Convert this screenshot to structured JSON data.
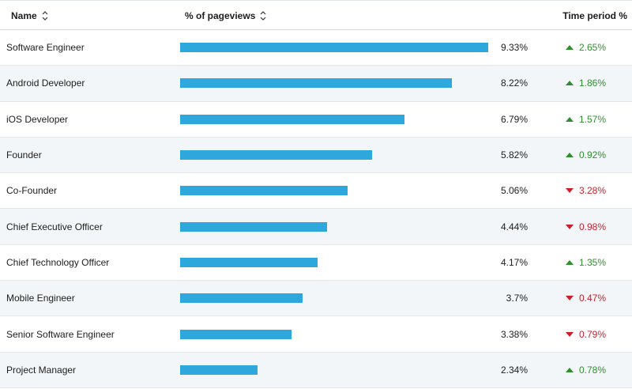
{
  "header": {
    "name_label": "Name",
    "views_label": "% of pageviews",
    "time_label": "Time period %"
  },
  "colors": {
    "bar": "#2ea8dc",
    "up": "#2f8f2f",
    "down": "#cc1f2a",
    "row_alt": "#f3f6f8"
  },
  "max_percent": 9.33,
  "rows": [
    {
      "name": "Software Engineer",
      "percent": 9.33,
      "percent_text": "9.33%",
      "delta_text": "2.65%",
      "direction": "up"
    },
    {
      "name": "Android Developer",
      "percent": 8.22,
      "percent_text": "8.22%",
      "delta_text": "1.86%",
      "direction": "up"
    },
    {
      "name": "iOS Developer",
      "percent": 6.79,
      "percent_text": "6.79%",
      "delta_text": "1.57%",
      "direction": "up"
    },
    {
      "name": "Founder",
      "percent": 5.82,
      "percent_text": "5.82%",
      "delta_text": "0.92%",
      "direction": "up"
    },
    {
      "name": "Co-Founder",
      "percent": 5.06,
      "percent_text": "5.06%",
      "delta_text": "3.28%",
      "direction": "down"
    },
    {
      "name": "Chief Executive Officer",
      "percent": 4.44,
      "percent_text": "4.44%",
      "delta_text": "0.98%",
      "direction": "down"
    },
    {
      "name": "Chief Technology Officer",
      "percent": 4.17,
      "percent_text": "4.17%",
      "delta_text": "1.35%",
      "direction": "up"
    },
    {
      "name": "Mobile Engineer",
      "percent": 3.7,
      "percent_text": "3.7%",
      "delta_text": "0.47%",
      "direction": "down"
    },
    {
      "name": "Senior Software Engineer",
      "percent": 3.38,
      "percent_text": "3.38%",
      "delta_text": "0.79%",
      "direction": "down"
    },
    {
      "name": "Project Manager",
      "percent": 2.34,
      "percent_text": "2.34%",
      "delta_text": "0.78%",
      "direction": "up"
    }
  ]
}
